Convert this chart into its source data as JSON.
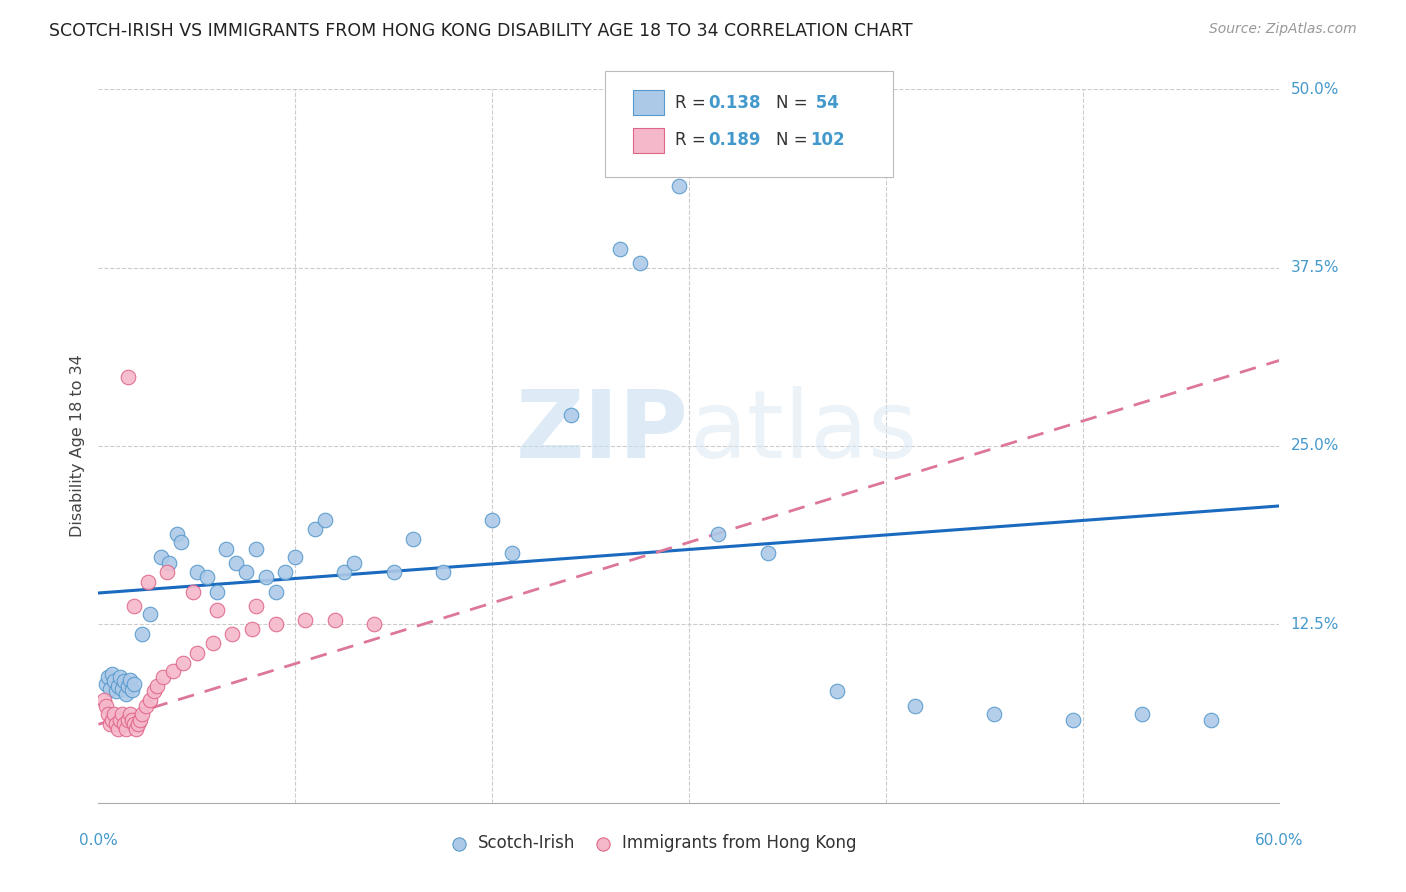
{
  "title": "SCOTCH-IRISH VS IMMIGRANTS FROM HONG KONG DISABILITY AGE 18 TO 34 CORRELATION CHART",
  "source": "Source: ZipAtlas.com",
  "ylabel": "Disability Age 18 to 34",
  "xmin": 0.0,
  "xmax": 0.6,
  "ymin": 0.0,
  "ymax": 0.5,
  "watermark": "ZIPatlas",
  "legend_R1": "0.138",
  "legend_N1": "54",
  "legend_R2": "0.189",
  "legend_N2": "102",
  "blue_fill": "#adc9e8",
  "blue_edge": "#5599cc",
  "pink_fill": "#f5b8cb",
  "pink_edge": "#e06688",
  "trendline1_color": "#1a6abf",
  "trendline2_color": "#dd7799",
  "scotch_irish_pts": [
    [
      0.004,
      0.083
    ],
    [
      0.005,
      0.088
    ],
    [
      0.006,
      0.08
    ],
    [
      0.007,
      0.09
    ],
    [
      0.008,
      0.085
    ],
    [
      0.009,
      0.078
    ],
    [
      0.01,
      0.082
    ],
    [
      0.011,
      0.088
    ],
    [
      0.012,
      0.08
    ],
    [
      0.013,
      0.085
    ],
    [
      0.014,
      0.076
    ],
    [
      0.015,
      0.082
    ],
    [
      0.016,
      0.086
    ],
    [
      0.017,
      0.079
    ],
    [
      0.018,
      0.083
    ],
    [
      0.022,
      0.118
    ],
    [
      0.026,
      0.132
    ],
    [
      0.032,
      0.172
    ],
    [
      0.036,
      0.168
    ],
    [
      0.04,
      0.188
    ],
    [
      0.042,
      0.183
    ],
    [
      0.05,
      0.162
    ],
    [
      0.055,
      0.158
    ],
    [
      0.06,
      0.148
    ],
    [
      0.065,
      0.178
    ],
    [
      0.07,
      0.168
    ],
    [
      0.075,
      0.162
    ],
    [
      0.08,
      0.178
    ],
    [
      0.085,
      0.158
    ],
    [
      0.09,
      0.148
    ],
    [
      0.095,
      0.162
    ],
    [
      0.1,
      0.172
    ],
    [
      0.11,
      0.192
    ],
    [
      0.115,
      0.198
    ],
    [
      0.125,
      0.162
    ],
    [
      0.13,
      0.168
    ],
    [
      0.15,
      0.162
    ],
    [
      0.16,
      0.185
    ],
    [
      0.175,
      0.162
    ],
    [
      0.2,
      0.198
    ],
    [
      0.24,
      0.272
    ],
    [
      0.265,
      0.388
    ],
    [
      0.275,
      0.378
    ],
    [
      0.295,
      0.432
    ],
    [
      0.315,
      0.188
    ],
    [
      0.34,
      0.175
    ],
    [
      0.375,
      0.078
    ],
    [
      0.415,
      0.068
    ],
    [
      0.455,
      0.062
    ],
    [
      0.495,
      0.058
    ],
    [
      0.53,
      0.062
    ],
    [
      0.565,
      0.058
    ],
    [
      0.21,
      0.175
    ]
  ],
  "hk_pts": [
    [
      0.003,
      0.072
    ],
    [
      0.004,
      0.068
    ],
    [
      0.005,
      0.062
    ],
    [
      0.006,
      0.055
    ],
    [
      0.007,
      0.058
    ],
    [
      0.008,
      0.062
    ],
    [
      0.009,
      0.055
    ],
    [
      0.01,
      0.052
    ],
    [
      0.011,
      0.058
    ],
    [
      0.012,
      0.062
    ],
    [
      0.013,
      0.055
    ],
    [
      0.014,
      0.052
    ],
    [
      0.015,
      0.058
    ],
    [
      0.016,
      0.062
    ],
    [
      0.017,
      0.058
    ],
    [
      0.018,
      0.055
    ],
    [
      0.019,
      0.052
    ],
    [
      0.02,
      0.055
    ],
    [
      0.021,
      0.058
    ],
    [
      0.022,
      0.062
    ],
    [
      0.024,
      0.068
    ],
    [
      0.026,
      0.072
    ],
    [
      0.028,
      0.078
    ],
    [
      0.03,
      0.082
    ],
    [
      0.033,
      0.088
    ],
    [
      0.038,
      0.092
    ],
    [
      0.043,
      0.098
    ],
    [
      0.05,
      0.105
    ],
    [
      0.058,
      0.112
    ],
    [
      0.068,
      0.118
    ],
    [
      0.078,
      0.122
    ],
    [
      0.09,
      0.125
    ],
    [
      0.105,
      0.128
    ],
    [
      0.12,
      0.128
    ],
    [
      0.14,
      0.125
    ],
    [
      0.015,
      0.298
    ],
    [
      0.018,
      0.138
    ],
    [
      0.025,
      0.155
    ],
    [
      0.035,
      0.162
    ],
    [
      0.048,
      0.148
    ],
    [
      0.06,
      0.135
    ],
    [
      0.08,
      0.138
    ]
  ],
  "si_trendline": [
    0.0,
    0.6
  ],
  "si_trend_y": [
    0.147,
    0.208
  ],
  "hk_trendline": [
    0.0,
    0.6
  ],
  "hk_trend_y": [
    0.055,
    0.31
  ]
}
